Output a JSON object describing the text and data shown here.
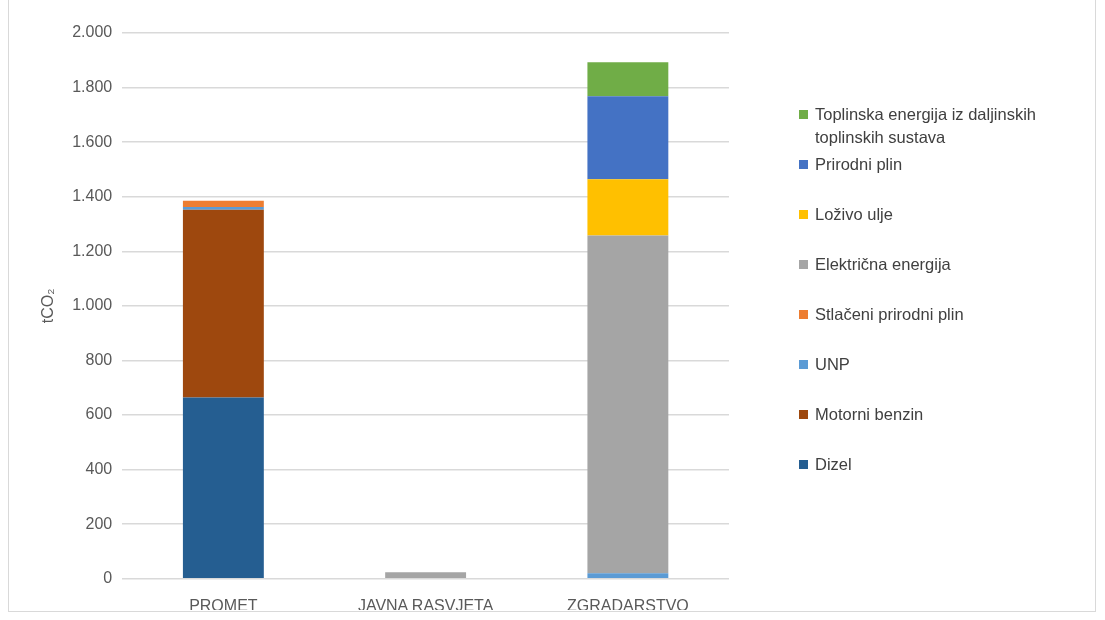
{
  "chart_data": {
    "type": "bar",
    "stacked": true,
    "ylabel": "tCO₂",
    "categories": [
      "PROMET",
      "JAVNA RASVJETA",
      "ZGRADARSTVO"
    ],
    "series": [
      {
        "name": "Dizel",
        "color": "#255e91",
        "values": [
          664,
          null,
          null
        ]
      },
      {
        "name": "Motorni benzin",
        "color": "#9e480e",
        "values": [
          688,
          null,
          null
        ]
      },
      {
        "name": "UNP",
        "color": "#5b9bd5",
        "values": [
          10,
          null,
          20
        ]
      },
      {
        "name": "Stlačeni prirodni plin",
        "color": "#ed7d31",
        "values": [
          23,
          null,
          null
        ]
      },
      {
        "name": "Električna energija",
        "color": "#a5a5a5",
        "values": [
          null,
          24,
          1238
        ]
      },
      {
        "name": "Loživo ulje",
        "color": "#ffc000",
        "values": [
          null,
          null,
          206
        ]
      },
      {
        "name": "Prirodni plin",
        "color": "#4472c4",
        "values": [
          null,
          null,
          304
        ]
      },
      {
        "name": "Toplinska energija iz daljinskih toplinskih sustava",
        "color": "#70ad47",
        "values": [
          null,
          null,
          125
        ]
      }
    ],
    "ylim": [
      0,
      2000
    ],
    "yticks": [
      0,
      200,
      400,
      600,
      800,
      {
        "value": 1000,
        "label": "1.000"
      },
      {
        "value": 1200,
        "label": "1.200"
      },
      {
        "value": 1400,
        "label": "1.400"
      },
      {
        "value": 1600,
        "label": "1.600"
      },
      {
        "value": 1800,
        "label": "1.800"
      },
      {
        "value": 2000,
        "label": "2.000"
      }
    ],
    "grid": "y",
    "legend": "right"
  }
}
